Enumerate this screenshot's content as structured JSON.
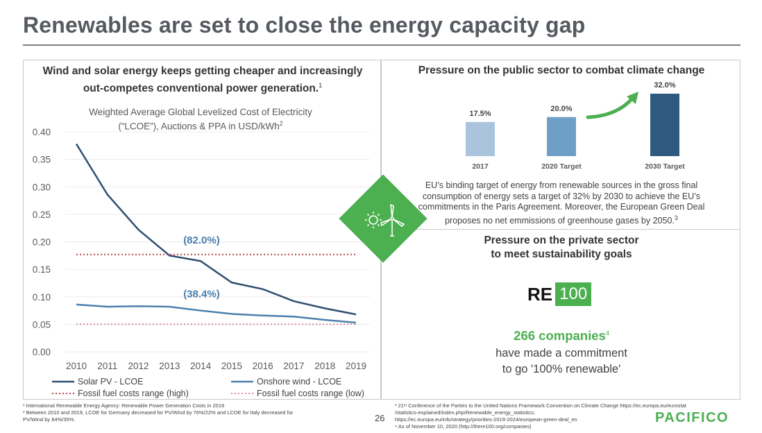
{
  "slide_title": "Renewables are set to close the energy capacity gap",
  "left_panel": {
    "heading_line1": "Wind and solar energy keeps getting cheaper and increasingly",
    "heading_line2": "out-competes conventional power generation.",
    "heading_sup": "1",
    "chart_subtitle_line1": "Weighted Average Global Levelized Cost of Electricity",
    "chart_subtitle_line2": "(“LCOE”), Auctions & PPA in USD/kWh",
    "chart_subtitle_sup": "2"
  },
  "chart_data": [
    {
      "type": "line",
      "title": "Weighted Average Global Levelized Cost of Electricity (“LCOE”), Auctions & PPA in USD/kWh",
      "x": [
        "2010",
        "2011",
        "2012",
        "2013",
        "2014",
        "2015",
        "2016",
        "2017",
        "2018",
        "2019"
      ],
      "ylim": [
        0,
        0.4
      ],
      "y_ticks": [
        "0.40",
        "0.35",
        "0.30",
        "0.25",
        "0.20",
        "0.15",
        "0.10",
        "0.05",
        "0.00"
      ],
      "grid": true,
      "legend_position": "bottom",
      "series": [
        {
          "name": "Solar PV - LCOE",
          "style": "solid",
          "color": "#2e4f70",
          "values": [
            0.378,
            0.286,
            0.222,
            0.175,
            0.165,
            0.126,
            0.114,
            0.092,
            0.079,
            0.068
          ]
        },
        {
          "name": "Onshore wind - LCOE",
          "style": "solid",
          "color": "#4a7fae",
          "values": [
            0.086,
            0.082,
            0.083,
            0.082,
            0.075,
            0.069,
            0.066,
            0.064,
            0.058,
            0.053
          ]
        },
        {
          "name": "Fossil fuel costs range (high)",
          "style": "dotted",
          "color": "#b5404a",
          "values": [
            0.177,
            0.177,
            0.177,
            0.177,
            0.177,
            0.177,
            0.177,
            0.177,
            0.177,
            0.177
          ]
        },
        {
          "name": "Fossil fuel costs range (low)",
          "style": "dotted",
          "color": "#d8899a",
          "values": [
            0.05,
            0.05,
            0.05,
            0.05,
            0.05,
            0.05,
            0.05,
            0.05,
            0.05,
            0.05
          ]
        }
      ],
      "annotations": [
        {
          "text": "(82.0%)",
          "x": "2014.7",
          "y": 0.197
        },
        {
          "text": "(38.4%)",
          "x": "2014.7",
          "y": 0.099
        }
      ]
    },
    {
      "type": "bar",
      "title": "Pressure on the public sector to combat climate change",
      "categories": [
        "2017",
        "2020 Target",
        "2030 Target"
      ],
      "values": [
        17.5,
        20.0,
        32.0
      ],
      "labels": [
        "17.5%",
        "20.0%",
        "32.0%"
      ],
      "colors": [
        "#a9c4dc",
        "#6f9fc7",
        "#2f5a80"
      ],
      "ylim": [
        0,
        32
      ]
    }
  ],
  "right_top": {
    "heading": "Pressure on the public sector to combat climate change",
    "text_lines": [
      "EU’s binding target of energy from renewable sources in the gross final",
      "consumption of energy sets a target of 32% by 2030 to achieve the EU’s",
      "commitments in the Paris Agreement. Moreover, the European Green Deal"
    ],
    "text_last_line": "proposes no net emmissions of greenhouse gases by 2050.",
    "text_sup": "3"
  },
  "right_bottom": {
    "heading_line1": "Pressure on the private sector",
    "heading_line2": "to meet sustainability goals",
    "logo_re": "RE",
    "logo_num": "100",
    "companies": "266 companies",
    "companies_sup": "4",
    "commit_line1": "have made a commitment",
    "commit_line2": "to go '100% renewable'"
  },
  "diamond_icons": [
    "sun-icon",
    "wind-turbine-icon"
  ],
  "footnotes_left": [
    "¹ International Renewable Energy Agency: Renewable Power Generation Costs in 2019",
    "² Between 2010 and 2019, LCOE for Germany decreased for PV/Wind by 76%/22% and LCOE for Italy decreased for",
    "PV/Wind by 84%/35%."
  ],
  "footnotes_right": [
    "³ 21ˢᵗ Conference of the Parties to the United Nations Framework Convention on Climate Change https://ec.europa.eu/eurostat",
    "/statistics-explained/index.php/Renewable_energy_statistics;",
    "https://ec.europa.eu/info/strategy/priorities-2019-2024/european-green-deal_en",
    "⁴ As of November 10, 2020 (http://there100.org/companies)"
  ],
  "page_number": "26",
  "brand_logo": "PACIFICO",
  "accent_color": "#4caf50"
}
